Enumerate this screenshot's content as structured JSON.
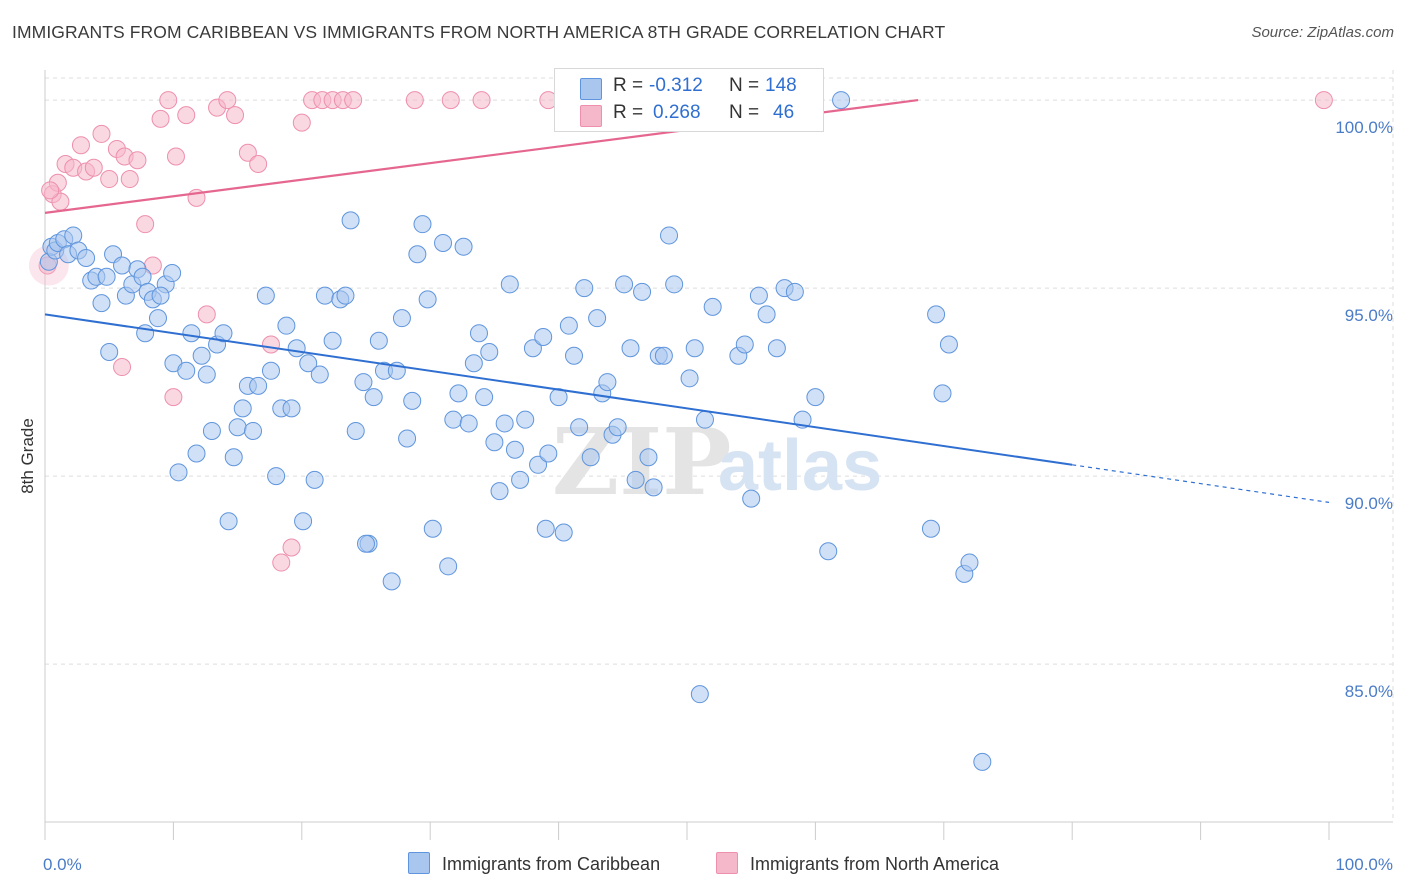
{
  "title": "IMMIGRANTS FROM CARIBBEAN VS IMMIGRANTS FROM NORTH AMERICA 8TH GRADE CORRELATION CHART",
  "source": "Source: ZipAtlas.com",
  "watermark": {
    "zip": "ZIP",
    "atlas": "atlas"
  },
  "legend": {
    "rows": [
      {
        "r_label": "R =",
        "r_value": "-0.312",
        "n_label": "N =",
        "n_value": "148"
      },
      {
        "r_label": "R =",
        "r_value": "0.268",
        "n_label": "N =",
        "n_value": "46"
      }
    ]
  },
  "bottom_legend": {
    "series1": "Immigrants from Caribbean",
    "series2": "Immigrants from North America"
  },
  "colors": {
    "blue_fill": "#a9c6ef",
    "blue_stroke": "#5f95dd",
    "blue_line": "#2f6fd1",
    "pink_fill": "#f5b8cb",
    "pink_stroke": "#ee8fad",
    "pink_line": "#e5678f",
    "tick_label": "#4a7cc7",
    "grid": "#dddddd"
  },
  "chart_data": {
    "type": "scatter",
    "title": "IMMIGRANTS FROM CARIBBEAN VS IMMIGRANTS FROM NORTH AMERICA 8TH GRADE CORRELATION CHART",
    "xlabel": "",
    "ylabel": "8th Grade",
    "xlim": [
      0,
      100
    ],
    "ylim": [
      80.8,
      100.8
    ],
    "x_tick_labels": [
      "0.0%",
      "100.0%"
    ],
    "y_ticks": [
      85,
      90,
      95,
      100
    ],
    "y_tick_labels": [
      "85.0%",
      "90.0%",
      "95.0%",
      "100.0%"
    ],
    "grid": true,
    "legend_position": "top-center",
    "series": [
      {
        "name": "Immigrants from Caribbean",
        "color": "#a9c6ef",
        "trend": {
          "x": [
            0,
            80
          ],
          "y": [
            94.3,
            90.3
          ],
          "dashed_to": [
            100,
            89.3
          ]
        },
        "points": [
          [
            0.3,
            95.7
          ],
          [
            0.5,
            96.1
          ],
          [
            0.8,
            96.0
          ],
          [
            1.0,
            96.2
          ],
          [
            1.5,
            96.3
          ],
          [
            1.8,
            95.9
          ],
          [
            2.2,
            96.4
          ],
          [
            2.6,
            96.0
          ],
          [
            3.2,
            95.8
          ],
          [
            3.6,
            95.2
          ],
          [
            4.0,
            95.3
          ],
          [
            4.4,
            94.6
          ],
          [
            4.8,
            95.3
          ],
          [
            5.3,
            95.9
          ],
          [
            6.0,
            95.6
          ],
          [
            6.3,
            94.8
          ],
          [
            6.8,
            95.1
          ],
          [
            7.2,
            95.5
          ],
          [
            7.6,
            95.3
          ],
          [
            8.0,
            94.9
          ],
          [
            8.4,
            94.7
          ],
          [
            8.8,
            94.2
          ],
          [
            9.4,
            95.1
          ],
          [
            9.9,
            95.4
          ],
          [
            5.0,
            93.3
          ],
          [
            7.8,
            93.8
          ],
          [
            9.0,
            94.8
          ],
          [
            10.0,
            93.0
          ],
          [
            10.4,
            90.1
          ],
          [
            11.0,
            92.8
          ],
          [
            11.4,
            93.8
          ],
          [
            11.8,
            90.6
          ],
          [
            12.2,
            93.2
          ],
          [
            12.6,
            92.7
          ],
          [
            13.0,
            91.2
          ],
          [
            13.4,
            93.5
          ],
          [
            13.9,
            93.8
          ],
          [
            14.3,
            88.8
          ],
          [
            14.7,
            90.5
          ],
          [
            15.0,
            91.3
          ],
          [
            15.4,
            91.8
          ],
          [
            15.8,
            92.4
          ],
          [
            16.2,
            91.2
          ],
          [
            16.6,
            92.4
          ],
          [
            17.2,
            94.8
          ],
          [
            17.6,
            92.8
          ],
          [
            18.0,
            90.0
          ],
          [
            18.4,
            91.8
          ],
          [
            18.8,
            94.0
          ],
          [
            19.2,
            91.8
          ],
          [
            19.6,
            93.4
          ],
          [
            20.1,
            88.8
          ],
          [
            20.5,
            93.0
          ],
          [
            21.0,
            89.9
          ],
          [
            21.4,
            92.7
          ],
          [
            21.8,
            94.8
          ],
          [
            22.4,
            93.6
          ],
          [
            23.0,
            94.7
          ],
          [
            23.4,
            94.8
          ],
          [
            23.8,
            96.8
          ],
          [
            24.2,
            91.2
          ],
          [
            24.8,
            92.5
          ],
          [
            25.2,
            88.2
          ],
          [
            25.6,
            92.1
          ],
          [
            26.0,
            93.6
          ],
          [
            26.4,
            92.8
          ],
          [
            27.0,
            87.2
          ],
          [
            27.4,
            92.8
          ],
          [
            27.8,
            94.2
          ],
          [
            28.2,
            91.0
          ],
          [
            28.6,
            92.0
          ],
          [
            29.0,
            95.9
          ],
          [
            29.4,
            96.7
          ],
          [
            29.8,
            94.7
          ],
          [
            30.2,
            88.6
          ],
          [
            31.0,
            96.2
          ],
          [
            31.4,
            87.6
          ],
          [
            31.8,
            91.5
          ],
          [
            32.2,
            92.2
          ],
          [
            32.6,
            96.1
          ],
          [
            33.0,
            91.4
          ],
          [
            33.4,
            93.0
          ],
          [
            33.8,
            93.8
          ],
          [
            34.2,
            92.1
          ],
          [
            34.6,
            93.3
          ],
          [
            35.0,
            90.9
          ],
          [
            35.4,
            89.6
          ],
          [
            35.8,
            91.4
          ],
          [
            36.2,
            95.1
          ],
          [
            36.6,
            90.7
          ],
          [
            37.0,
            89.9
          ],
          [
            37.4,
            91.5
          ],
          [
            38.0,
            93.4
          ],
          [
            38.4,
            90.3
          ],
          [
            38.8,
            93.7
          ],
          [
            39.2,
            90.6
          ],
          [
            40.0,
            92.1
          ],
          [
            40.4,
            88.5
          ],
          [
            40.8,
            94.0
          ],
          [
            41.2,
            93.2
          ],
          [
            41.6,
            91.3
          ],
          [
            42.0,
            95.0
          ],
          [
            42.5,
            90.5
          ],
          [
            43.0,
            94.2
          ],
          [
            43.4,
            92.2
          ],
          [
            43.8,
            92.5
          ],
          [
            44.2,
            91.1
          ],
          [
            44.6,
            91.3
          ],
          [
            45.1,
            95.1
          ],
          [
            45.6,
            93.4
          ],
          [
            46.0,
            89.9
          ],
          [
            46.5,
            94.9
          ],
          [
            47.0,
            90.5
          ],
          [
            47.4,
            89.7
          ],
          [
            47.8,
            93.2
          ],
          [
            48.2,
            93.2
          ],
          [
            48.6,
            96.4
          ],
          [
            49.0,
            95.1
          ],
          [
            50.2,
            92.6
          ],
          [
            50.6,
            93.4
          ],
          [
            51.0,
            84.2
          ],
          [
            51.4,
            91.5
          ],
          [
            52.0,
            94.5
          ],
          [
            54.0,
            93.2
          ],
          [
            54.5,
            93.5
          ],
          [
            55.0,
            89.4
          ],
          [
            55.6,
            94.8
          ],
          [
            56.2,
            94.3
          ],
          [
            57.0,
            93.4
          ],
          [
            57.6,
            95.0
          ],
          [
            58.4,
            94.9
          ],
          [
            59.0,
            91.5
          ],
          [
            60.0,
            92.1
          ],
          [
            61.0,
            88.0
          ],
          [
            62.0,
            100.0
          ],
          [
            69.0,
            88.6
          ],
          [
            69.4,
            94.3
          ],
          [
            69.9,
            92.2
          ],
          [
            70.4,
            93.5
          ],
          [
            71.6,
            87.4
          ],
          [
            72.0,
            87.7
          ],
          [
            73.0,
            82.4
          ],
          [
            39.0,
            88.6
          ],
          [
            25.0,
            88.2
          ]
        ]
      },
      {
        "name": "Immigrants from North America",
        "color": "#f5b8cb",
        "trend": {
          "x": [
            0,
            68
          ],
          "y": [
            97.0,
            100.0
          ]
        },
        "points": [
          [
            0.2,
            95.6
          ],
          [
            0.6,
            97.5
          ],
          [
            1.0,
            97.8
          ],
          [
            1.6,
            98.3
          ],
          [
            2.2,
            98.2
          ],
          [
            2.8,
            98.8
          ],
          [
            3.2,
            98.1
          ],
          [
            3.8,
            98.2
          ],
          [
            4.4,
            99.1
          ],
          [
            5.0,
            97.9
          ],
          [
            5.6,
            98.7
          ],
          [
            6.2,
            98.5
          ],
          [
            6.6,
            97.9
          ],
          [
            7.2,
            98.4
          ],
          [
            7.8,
            96.7
          ],
          [
            8.4,
            95.6
          ],
          [
            9.0,
            99.5
          ],
          [
            9.6,
            100.0
          ],
          [
            10.2,
            98.5
          ],
          [
            11.0,
            99.6
          ],
          [
            11.8,
            97.4
          ],
          [
            12.6,
            94.3
          ],
          [
            13.4,
            99.8
          ],
          [
            14.2,
            100.0
          ],
          [
            14.8,
            99.6
          ],
          [
            15.8,
            98.6
          ],
          [
            16.6,
            98.3
          ],
          [
            17.6,
            93.5
          ],
          [
            18.4,
            87.7
          ],
          [
            19.2,
            88.1
          ],
          [
            20.0,
            99.4
          ],
          [
            20.8,
            100.0
          ],
          [
            21.6,
            100.0
          ],
          [
            22.4,
            100.0
          ],
          [
            23.2,
            100.0
          ],
          [
            24.0,
            100.0
          ],
          [
            28.8,
            100.0
          ],
          [
            31.6,
            100.0
          ],
          [
            34.0,
            100.0
          ],
          [
            39.2,
            100.0
          ],
          [
            49.4,
            100.0
          ],
          [
            99.6,
            100.0
          ],
          [
            6.0,
            92.9
          ],
          [
            10.0,
            92.1
          ],
          [
            1.2,
            97.3
          ],
          [
            0.4,
            97.6
          ]
        ]
      }
    ]
  }
}
